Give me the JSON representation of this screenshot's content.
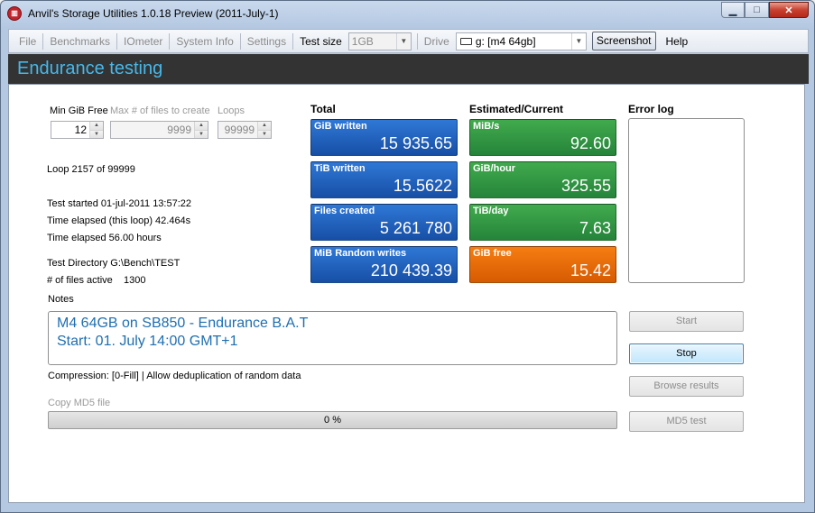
{
  "window": {
    "title": "Anvil's Storage Utilities 1.0.18 Preview (2011-July-1)",
    "app_icon_glyph": "▥",
    "minimize_glyph": "▁",
    "maximize_glyph": "□",
    "close_glyph": "✕"
  },
  "menu": {
    "file": "File",
    "benchmarks": "Benchmarks",
    "iometer": "IOmeter",
    "system_info": "System Info",
    "settings": "Settings",
    "test_size_label": "Test size",
    "test_size_value": "1GB",
    "drive_label": "Drive",
    "drive_value": "g: [m4 64gb]",
    "screenshot": "Screenshot",
    "help": "Help"
  },
  "header": {
    "title": "Endurance testing"
  },
  "settings": {
    "min_free_label": "Min GiB Free",
    "min_free_value": "12",
    "max_files_label": "Max # of files to create",
    "max_files_value": "9999",
    "loops_label": "Loops",
    "loops_value": "99999"
  },
  "status": {
    "loop": "Loop 2157 of 99999",
    "test_started": "Test started 01-jul-2011 13:57:22",
    "elapsed_loop": "Time elapsed (this loop) 42.464s",
    "elapsed_total": "Time elapsed 56.00 hours",
    "test_directory": "Test Directory G:\\Bench\\TEST",
    "files_active_label": "# of files active",
    "files_active_value": "1300"
  },
  "totals": {
    "heading": "Total",
    "tiles": [
      {
        "label": "GiB written",
        "value": "15 935.65"
      },
      {
        "label": "TiB written",
        "value": "15.5622"
      },
      {
        "label": "Files created",
        "value": "5 261 780"
      },
      {
        "label": "MiB Random writes",
        "value": "210 439.39"
      }
    ]
  },
  "current": {
    "heading": "Estimated/Current",
    "tiles": [
      {
        "label": "MiB/s",
        "value": "92.60"
      },
      {
        "label": "GiB/hour",
        "value": "325.55"
      },
      {
        "label": "TiB/day",
        "value": "7.63"
      },
      {
        "label": "GiB free",
        "value": "15.42"
      }
    ]
  },
  "error_log": {
    "heading": "Error log"
  },
  "notes": {
    "label": "Notes",
    "line1": "M4 64GB on SB850 - Endurance B.A.T",
    "line2": "Start: 01. July 14:00 GMT+1"
  },
  "compression": "Compression: [0-Fill] | Allow deduplication of random data",
  "copy_md5": {
    "label": "Copy MD5 file",
    "progress_text": "0 %",
    "progress_fraction": 0
  },
  "buttons": {
    "start": "Start",
    "stop": "Stop",
    "browse": "Browse results",
    "md5": "MD5 test"
  },
  "colors": {
    "header_band": "#333333",
    "header_text": "#46b8ea",
    "tile_blue": "#1e5fbf",
    "tile_green": "#2e9440",
    "tile_orange": "#e86a08"
  },
  "icons": {
    "drive": "drive-icon",
    "spin_up": "▲",
    "spin_down": "▼",
    "combo_arrow": "▼"
  }
}
